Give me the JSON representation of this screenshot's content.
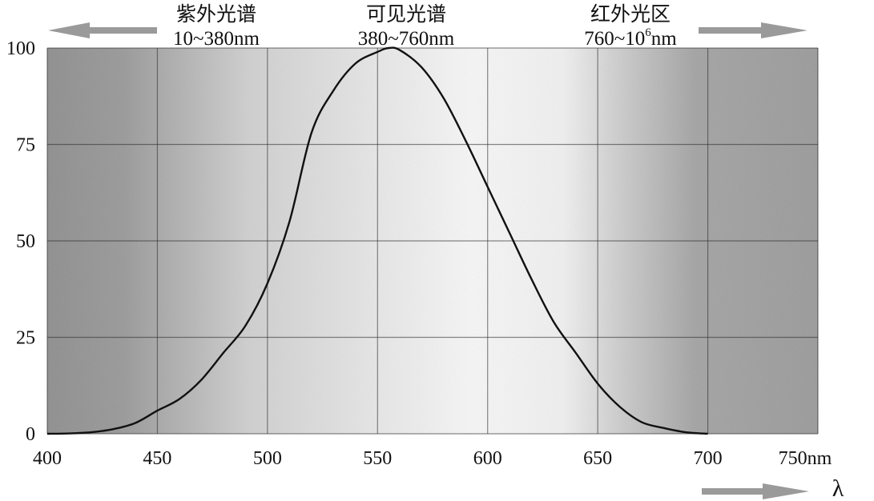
{
  "chart_data": {
    "type": "line",
    "title": "",
    "xlabel": "λ",
    "ylabel": "",
    "x_unit": "nm",
    "xlim": [
      400,
      750
    ],
    "ylim": [
      0,
      100
    ],
    "x_ticks": [
      400,
      450,
      500,
      550,
      600,
      650,
      700,
      750
    ],
    "x_tick_labels": [
      "400",
      "450",
      "500",
      "550",
      "600",
      "650",
      "700",
      "750nm"
    ],
    "y_ticks": [
      0,
      25,
      50,
      75,
      100
    ],
    "y_tick_labels": [
      "0",
      "25",
      "50",
      "75",
      "100"
    ],
    "grid": true,
    "series": [
      {
        "x": [
          400,
          410,
          420,
          430,
          440,
          450,
          460,
          470,
          480,
          490,
          500,
          510,
          520,
          530,
          540,
          550,
          555,
          560,
          570,
          580,
          590,
          600,
          610,
          620,
          630,
          640,
          650,
          660,
          670,
          680,
          690,
          700
        ],
        "values": [
          0,
          0.1,
          0.4,
          1.2,
          2.8,
          6,
          9,
          14,
          21,
          28,
          39,
          55,
          78,
          89,
          96,
          99,
          100,
          99.5,
          95,
          87,
          76,
          64,
          52,
          40,
          29,
          21,
          13,
          7,
          3,
          1.5,
          0.4,
          0
        ]
      }
    ],
    "regions": [
      {
        "name": "紫外光谱",
        "range": "10~380nm",
        "direction": "left"
      },
      {
        "name": "可见光谱",
        "range": "380~760nm",
        "direction": "none"
      },
      {
        "name": "红外光区",
        "range_base": "760~10",
        "range_exp": "6",
        "range_unit": "nm",
        "direction": "right"
      }
    ],
    "colors": {
      "curve": "#111111",
      "grid": "#2a2a2a",
      "dark_band": "#8c8c8c",
      "light_band": "#f7f7f7",
      "arrow": "#9a9a9a"
    }
  }
}
